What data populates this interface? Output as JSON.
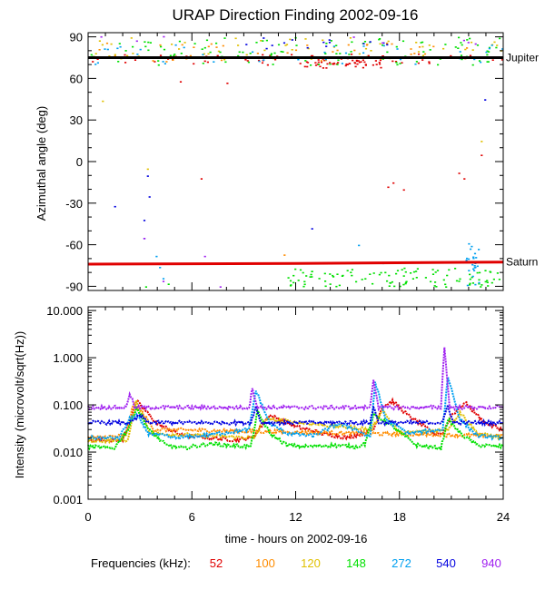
{
  "chart_data": [
    {
      "type": "scatter",
      "title": "URAP Direction Finding  2002-09-16",
      "ylabel": "Azimuthal angle (deg)",
      "xlim": [
        0,
        24
      ],
      "ylim": [
        -93,
        93
      ],
      "y_ticks": [
        90,
        60,
        30,
        0,
        -30,
        -60,
        -90
      ],
      "y_tick_labels": [
        "90",
        "60",
        "30",
        "0",
        "-30",
        "-60",
        "-90"
      ],
      "reference_lines": [
        {
          "name": "Jupiter",
          "color": "#000000",
          "y": [
            [
              0,
              75
            ],
            [
              24,
              75
            ]
          ]
        },
        {
          "name": "Saturn",
          "color": "#e00000",
          "y": [
            [
              0,
              -74
            ],
            [
              12,
              -73.5
            ],
            [
              24,
              -72.5
            ]
          ]
        }
      ],
      "series": [
        {
          "name": "52",
          "color": "#e00000",
          "bands": [
            {
              "x": [
                0,
                24
              ],
              "y": [
                70,
                78
              ],
              "n": 60
            },
            {
              "x": [
                12,
                17
              ],
              "y": [
                68,
                76
              ],
              "n": 50
            }
          ],
          "points": [
            [
              5.3,
              58
            ],
            [
              8,
              57
            ],
            [
              6.5,
              -12
            ],
            [
              17.3,
              -18
            ],
            [
              17.6,
              -15
            ],
            [
              18.2,
              -20
            ],
            [
              21.4,
              -8
            ],
            [
              21.7,
              -12
            ],
            [
              22.7,
              5
            ]
          ]
        },
        {
          "name": "100",
          "color": "#ff8c00",
          "bands": [
            {
              "x": [
                0,
                24
              ],
              "y": [
                72,
                86
              ],
              "n": 40
            }
          ],
          "points": [
            [
              11.3,
              -67
            ]
          ]
        },
        {
          "name": "120",
          "color": "#e0c000",
          "bands": [
            {
              "x": [
                0,
                24
              ],
              "y": [
                74,
                90
              ],
              "n": 60
            }
          ],
          "points": [
            [
              0.8,
              44
            ],
            [
              3.4,
              -5
            ],
            [
              22.7,
              15
            ]
          ]
        },
        {
          "name": "148",
          "color": "#00e000",
          "bands": [
            {
              "x": [
                0,
                24
              ],
              "y": [
                70,
                90
              ],
              "n": 110
            },
            {
              "x": [
                11.5,
                24
              ],
              "y": [
                -90,
                -76
              ],
              "n": 110
            }
          ],
          "points": [
            [
              3.3,
              -90
            ],
            [
              4.6,
              -88
            ],
            [
              20.6,
              85
            ]
          ]
        },
        {
          "name": "272",
          "color": "#00a0f0",
          "bands": [
            {
              "x": [
                0,
                24
              ],
              "y": [
                70,
                85
              ],
              "n": 40
            },
            {
              "x": [
                21.8,
                22.6
              ],
              "y": [
                -90,
                -58
              ],
              "n": 25
            }
          ],
          "points": [
            [
              3.9,
              -68
            ],
            [
              4.1,
              -76
            ],
            [
              4.3,
              -84
            ],
            [
              15.6,
              -60
            ],
            [
              17,
              -73
            ]
          ]
        },
        {
          "name": "540",
          "color": "#0000e0",
          "bands": [
            {
              "x": [
                8,
                18
              ],
              "y": [
                82,
                90
              ],
              "n": 15
            }
          ],
          "points": [
            [
              1.5,
              -32
            ],
            [
              3.2,
              -42
            ],
            [
              3.5,
              -25
            ],
            [
              3.4,
              -10
            ],
            [
              3.2,
              -55
            ],
            [
              12.9,
              -48
            ],
            [
              22.9,
              45
            ]
          ]
        },
        {
          "name": "940",
          "color": "#a020f0",
          "bands": [
            {
              "x": [
                0,
                24
              ],
              "y": [
                82,
                92
              ],
              "n": 8
            }
          ],
          "points": [
            [
              3.2,
              -55
            ],
            [
              4.3,
              -86
            ],
            [
              6.7,
              -68
            ],
            [
              7.6,
              -90
            ]
          ]
        }
      ],
      "reference_labels": [
        "Jupiter",
        "Saturn"
      ]
    },
    {
      "type": "line",
      "ylabel": "Intensity (microvolt/sqrt(Hz))",
      "xlabel": "time - hours on 2002-09-16",
      "yscale": "log",
      "xlim": [
        0,
        24
      ],
      "ylim": [
        0.001,
        12
      ],
      "x_ticks": [
        0,
        6,
        12,
        18,
        24
      ],
      "x_tick_labels": [
        "0",
        "6",
        "12",
        "18",
        "24"
      ],
      "y_ticks": [
        10,
        1,
        0.1,
        0.01,
        0.001
      ],
      "y_tick_labels": [
        "10.000",
        "1.000",
        "0.100",
        "0.010",
        "0.001"
      ],
      "legend_label": "Frequencies (kHz):",
      "series": [
        {
          "name": "52",
          "color": "#e00000",
          "x": [
            0,
            2,
            2.8,
            4,
            5.5,
            7,
            8.5,
            9.5,
            10.5,
            12,
            13.5,
            15,
            16.5,
            17,
            17.6,
            18.5,
            20,
            20.5,
            21,
            21.8,
            23,
            24
          ],
          "y": [
            0.018,
            0.018,
            0.12,
            0.04,
            0.022,
            0.02,
            0.018,
            0.02,
            0.06,
            0.035,
            0.025,
            0.02,
            0.03,
            0.09,
            0.12,
            0.06,
            0.025,
            0.025,
            0.06,
            0.11,
            0.04,
            0.03
          ]
        },
        {
          "name": "100",
          "color": "#ff8c00",
          "x": [
            0,
            2.2,
            2.6,
            3,
            3.8,
            24
          ],
          "y": [
            0.02,
            0.022,
            0.1,
            0.08,
            0.03,
            0.022
          ]
        },
        {
          "name": "120",
          "color": "#e0c000",
          "x": [
            0,
            2.3,
            2.8,
            3.6,
            9.6,
            10.2,
            16.4,
            17,
            18,
            20.8,
            21.5,
            22.5,
            24
          ],
          "y": [
            0.017,
            0.018,
            0.12,
            0.025,
            0.02,
            0.05,
            0.03,
            0.08,
            0.025,
            0.03,
            0.07,
            0.025,
            0.02
          ]
        },
        {
          "name": "148",
          "color": "#00e000",
          "x": [
            0,
            1.5,
            2.3,
            2.8,
            3.5,
            4.5,
            5.5,
            7,
            8,
            9.4,
            9.8,
            10.5,
            11.5,
            12.5,
            14,
            15.5,
            16,
            16.5,
            17,
            17.8,
            19,
            20.4,
            20.8,
            21.5,
            22.5,
            24
          ],
          "y": [
            0.013,
            0.012,
            0.03,
            0.09,
            0.03,
            0.014,
            0.012,
            0.015,
            0.014,
            0.013,
            0.07,
            0.025,
            0.014,
            0.013,
            0.014,
            0.013,
            0.015,
            0.06,
            0.05,
            0.03,
            0.014,
            0.012,
            0.05,
            0.025,
            0.014,
            0.013
          ]
        },
        {
          "name": "272",
          "color": "#00a0f0",
          "x": [
            0,
            1.8,
            2.4,
            2.8,
            3.5,
            5,
            6.5,
            9.3,
            9.7,
            10.5,
            11.5,
            13,
            14.5,
            15.5,
            16.3,
            16.6,
            17.2,
            18.5,
            20.5,
            20.8,
            21.5,
            22.5,
            24
          ],
          "y": [
            0.02,
            0.02,
            0.05,
            0.06,
            0.025,
            0.02,
            0.022,
            0.03,
            0.2,
            0.04,
            0.025,
            0.022,
            0.04,
            0.03,
            0.02,
            0.3,
            0.05,
            0.025,
            0.03,
            0.4,
            0.05,
            0.022,
            0.02
          ]
        },
        {
          "name": "540",
          "color": "#0000e0",
          "x": [
            0,
            2.5,
            3,
            3.5,
            9.4,
            9.7,
            10,
            16.3,
            16.5,
            16.8,
            20.5,
            20.8,
            21.1,
            24
          ],
          "y": [
            0.042,
            0.042,
            0.06,
            0.042,
            0.042,
            0.09,
            0.042,
            0.042,
            0.09,
            0.042,
            0.042,
            0.1,
            0.042,
            0.042
          ]
        },
        {
          "name": "940",
          "color": "#a020f0",
          "x": [
            0,
            2.2,
            2.4,
            2.7,
            9.3,
            9.5,
            9.8,
            16.3,
            16.5,
            16.8,
            20.4,
            20.6,
            20.9,
            24
          ],
          "y": [
            0.088,
            0.088,
            0.18,
            0.088,
            0.088,
            0.22,
            0.088,
            0.088,
            0.35,
            0.088,
            0.088,
            1.8,
            0.088,
            0.088
          ]
        }
      ]
    }
  ]
}
